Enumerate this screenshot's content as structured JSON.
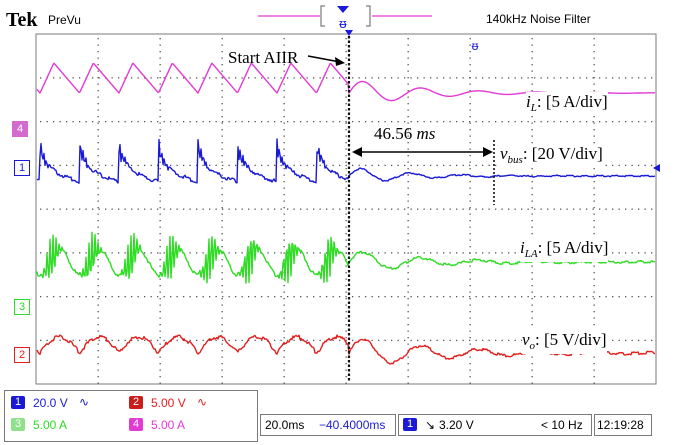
{
  "header": {
    "brand": "Tek",
    "mode": "PreVu",
    "filter_label": "140kHz  Noise Filter"
  },
  "annotations": {
    "start": "Start AIIR",
    "duration_value": "46.56 ",
    "duration_unit": "ms",
    "i_l_sym": "i",
    "i_l_sub": "L",
    "i_l_scale": ": [5 A/div]",
    "v_bus_sym": "v",
    "v_bus_sub": "bus",
    "v_bus_scale": ": [20 V/div]",
    "i_la_sym": "i",
    "i_la_sub": "LA",
    "i_la_scale": ": [5 A/div]",
    "v_o_sym": "v",
    "v_o_sub": "o",
    "v_o_scale": ": [5 V/div]"
  },
  "channels": [
    {
      "num": "1",
      "color": "#1a1ad6"
    },
    {
      "num": "2",
      "color": "#e0201e"
    },
    {
      "num": "3",
      "color": "#2edc24"
    },
    {
      "num": "4",
      "color": "#e23ad4"
    }
  ],
  "readout": {
    "ch1_scale": "20.0 V",
    "ch1_coupling": "∿",
    "ch2_scale": "5.00 V",
    "ch2_coupling": "∿",
    "ch3_scale": "5.00 A",
    "ch4_scale": "5.00 A",
    "timebase": "20.0ms",
    "delay": "−40.4000ms",
    "trig_level": "3.20 V",
    "trig_slope": "↘",
    "freq": "< 10 Hz",
    "clock": "12:19:28"
  }
}
